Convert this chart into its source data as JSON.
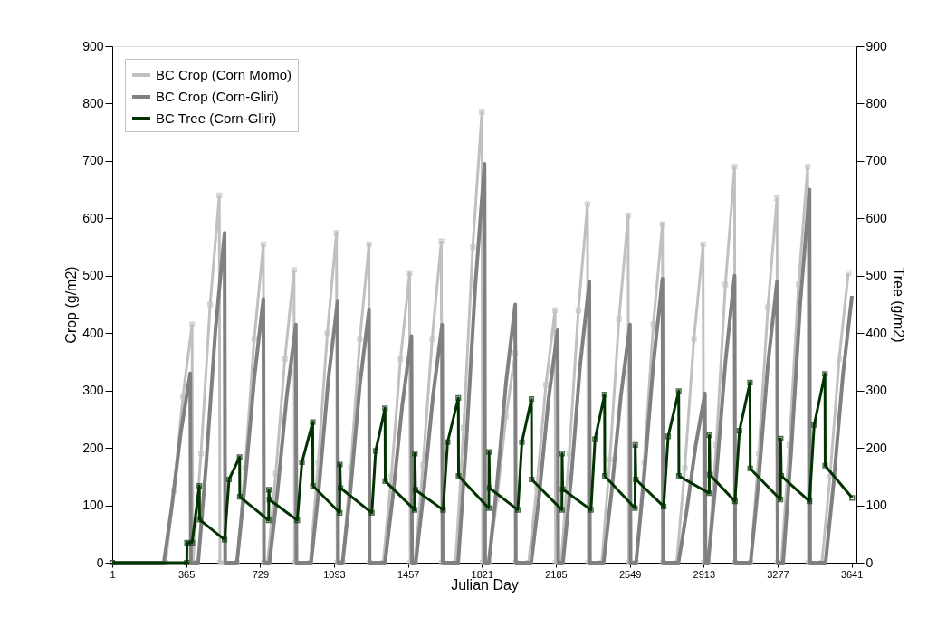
{
  "chart_data": {
    "type": "line",
    "xlabel": "Julian Day",
    "ylabel": "Crop (g/m2)",
    "y2label": "Tree (g/m2)",
    "xlim": [
      1,
      3665
    ],
    "xticks": [
      1,
      365,
      729,
      1093,
      1457,
      1821,
      2185,
      2549,
      2913,
      3277,
      3641
    ],
    "ylim": [
      0,
      900
    ],
    "yticks": [
      0,
      100,
      200,
      300,
      400,
      500,
      600,
      700,
      800,
      900
    ],
    "y2lim": [
      0,
      900
    ],
    "y2ticks": [
      0,
      100,
      200,
      300,
      400,
      500,
      600,
      700,
      800,
      900
    ],
    "grid": false,
    "legend": "top left",
    "line_style": "solid",
    "series": [
      {
        "name": "BC Crop (Corn Momo)",
        "color": "#c0c0c0",
        "marker": "square",
        "x": [
          1,
          264,
          304,
          349,
          394,
          397,
          398,
          438,
          483,
          528,
          531,
          615,
          655,
          700,
          745,
          748,
          766,
          806,
          851,
          896,
          899,
          975,
          1015,
          1060,
          1105,
          1108,
          1135,
          1175,
          1220,
          1265,
          1268,
          1335,
          1375,
          1420,
          1465,
          1468,
          1491,
          1531,
          1576,
          1621,
          1624,
          1691,
          1731,
          1776,
          1821,
          1824,
          1855,
          1895,
          1940,
          1985,
          1988,
          2051,
          2091,
          2136,
          2181,
          2184,
          2211,
          2251,
          2296,
          2341,
          2344,
          2411,
          2451,
          2496,
          2541,
          2544,
          2580,
          2620,
          2665,
          2710,
          2713,
          2780,
          2820,
          2865,
          2910,
          2913,
          2935,
          2975,
          3020,
          3065,
          3068,
          3144,
          3184,
          3229,
          3274,
          3277,
          3295,
          3335,
          3380,
          3425,
          3428,
          3495,
          3535,
          3580,
          3625
        ],
        "values": [
          0,
          0,
          125,
          290,
          415,
          0,
          0,
          190,
          450,
          640,
          0,
          0,
          165,
          390,
          555,
          0,
          0,
          155,
          355,
          510,
          0,
          0,
          175,
          400,
          575,
          0,
          0,
          165,
          390,
          555,
          0,
          0,
          150,
          355,
          505,
          0,
          0,
          170,
          390,
          560,
          0,
          0,
          235,
          550,
          785,
          0,
          0,
          110,
          255,
          365,
          0,
          0,
          130,
          310,
          440,
          0,
          0,
          190,
          440,
          625,
          0,
          0,
          180,
          425,
          605,
          0,
          0,
          175,
          415,
          590,
          0,
          0,
          165,
          390,
          555,
          0,
          0,
          205,
          485,
          690,
          0,
          0,
          190,
          445,
          635,
          0,
          0,
          205,
          485,
          690,
          0,
          0,
          150,
          355,
          505
        ]
      },
      {
        "name": "BC Crop (Corn-Gliri)",
        "color": "#808080",
        "marker": "none",
        "x": [
          1,
          255,
          295,
          340,
          385,
          388,
          424,
          464,
          509,
          554,
          557,
          615,
          655,
          700,
          745,
          748,
          775,
          815,
          860,
          905,
          908,
          980,
          1020,
          1065,
          1110,
          1113,
          1135,
          1175,
          1220,
          1265,
          1268,
          1344,
          1384,
          1429,
          1474,
          1477,
          1495,
          1535,
          1580,
          1625,
          1628,
          1704,
          1744,
          1789,
          1834,
          1837,
          1855,
          1895,
          1940,
          1985,
          1988,
          2064,
          2104,
          2149,
          2194,
          2197,
          2220,
          2260,
          2305,
          2350,
          2353,
          2420,
          2460,
          2505,
          2550,
          2553,
          2580,
          2620,
          2665,
          2710,
          2713,
          2789,
          2829,
          2874,
          2919,
          2922,
          2935,
          2975,
          3020,
          3065,
          3068,
          3144,
          3184,
          3229,
          3274,
          3277,
          3304,
          3344,
          3389,
          3434,
          3437,
          3513,
          3553,
          3598,
          3643
        ],
        "values": [
          0,
          0,
          100,
          230,
          330,
          0,
          0,
          175,
          405,
          575,
          0,
          0,
          140,
          320,
          460,
          0,
          0,
          125,
          290,
          415,
          0,
          0,
          135,
          320,
          455,
          0,
          0,
          130,
          310,
          440,
          0,
          0,
          120,
          275,
          395,
          0,
          0,
          125,
          290,
          415,
          0,
          0,
          210,
          485,
          695,
          0,
          0,
          135,
          315,
          450,
          0,
          0,
          120,
          285,
          405,
          0,
          0,
          145,
          345,
          490,
          0,
          0,
          125,
          290,
          415,
          0,
          0,
          150,
          345,
          495,
          0,
          0,
          90,
          205,
          295,
          0,
          0,
          150,
          350,
          500,
          0,
          0,
          145,
          345,
          490,
          0,
          0,
          195,
          455,
          650,
          0,
          0,
          140,
          325,
          465
        ]
      },
      {
        "name": "BC Tree (Corn-Gliri)",
        "color": "#003300",
        "marker": "square",
        "axis": "y2",
        "x": [
          1,
          368,
          369,
          394,
          430,
          431,
          554,
          576,
          628,
          629,
          771,
          772,
          775,
          912,
          935,
          988,
          989,
          1121,
          1122,
          1125,
          1279,
          1298,
          1344,
          1345,
          1490,
          1491,
          1494,
          1630,
          1652,
          1705,
          1706,
          1855,
          1856,
          1859,
          1998,
          2018,
          2065,
          2066,
          2215,
          2216,
          2219,
          2358,
          2378,
          2425,
          2426,
          2575,
          2576,
          2579,
          2716,
          2738,
          2790,
          2791,
          2940,
          2941,
          2944,
          3067,
          3089,
          3141,
          3142,
          3291,
          3292,
          3295,
          3434,
          3457,
          3510,
          3511,
          3644
        ],
        "values": [
          0,
          0,
          35,
          35,
          134,
          75,
          40,
          145,
          184,
          115,
          74,
          127,
          110,
          74,
          175,
          245,
          134,
          87,
          171,
          130,
          87,
          195,
          269,
          142,
          92,
          190,
          127,
          92,
          210,
          287,
          151,
          95,
          193,
          130,
          92,
          210,
          285,
          145,
          92,
          190,
          128,
          92,
          215,
          293,
          151,
          95,
          205,
          145,
          98,
          220,
          299,
          151,
          121,
          222,
          153,
          107,
          230,
          314,
          164,
          110,
          216,
          151,
          107,
          240,
          329,
          169,
          113
        ]
      }
    ]
  }
}
